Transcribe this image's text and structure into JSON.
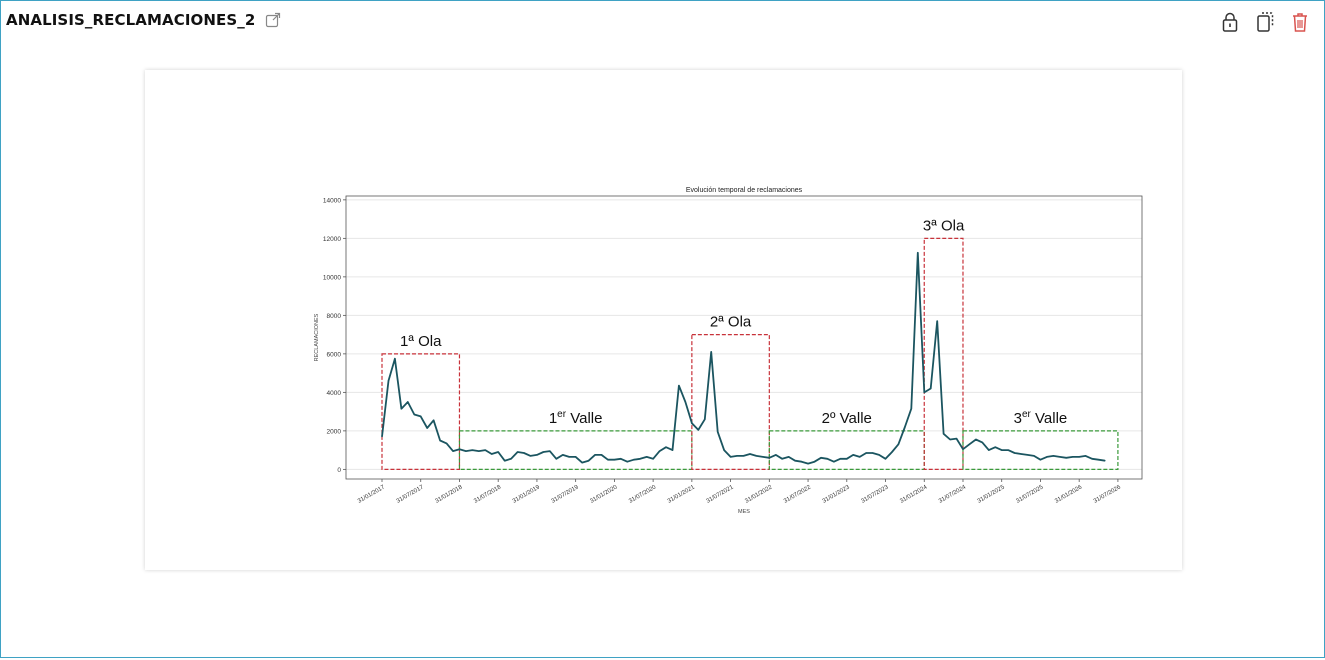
{
  "header": {
    "title": "ANALISIS_RECLAMACIONES_2"
  },
  "colors": {
    "line": "#1b5560",
    "wave_box": "#c8323a",
    "valley_box": "#3a9a3a",
    "frame_border": "#3fa2c4",
    "delete_icon": "#d9534f"
  },
  "chart_data": {
    "type": "line",
    "title": "Evolución temporal de reclamaciones",
    "xlabel": "MES",
    "ylabel": "RECLAMACIONES",
    "ylim": [
      -500,
      14200
    ],
    "y_ticks": [
      0,
      2000,
      4000,
      6000,
      8000,
      10000,
      12000,
      14000
    ],
    "grid": "horizontal",
    "x_ticks": [
      "31/01/2017",
      "31/07/2017",
      "31/01/2018",
      "31/07/2018",
      "31/01/2019",
      "31/07/2019",
      "31/01/2020",
      "31/07/2020",
      "31/01/2021",
      "31/07/2021",
      "31/01/2022",
      "31/07/2022",
      "31/01/2023",
      "31/07/2023",
      "31/01/2024",
      "31/07/2024",
      "31/01/2025",
      "31/07/2025",
      "31/01/2026",
      "31/07/2026"
    ],
    "x_start": "31/01/2017",
    "series": [
      {
        "values": [
          1700,
          4600,
          5750,
          3150,
          3500,
          2850,
          2750,
          2150,
          2550,
          1500,
          1350,
          950,
          1050,
          950,
          1000,
          950,
          1000,
          800,
          900,
          450,
          550,
          900,
          850,
          700,
          750,
          900,
          950,
          550,
          750,
          650,
          650,
          350,
          450,
          750,
          750,
          500,
          500,
          550,
          400,
          500,
          550,
          650,
          550,
          950,
          1150,
          1000,
          4350,
          3500,
          2400,
          2050,
          2600,
          6100,
          1950,
          1000,
          650,
          700,
          700,
          800,
          700,
          650,
          600,
          750,
          550,
          650,
          450,
          400,
          300,
          400,
          600,
          550,
          400,
          550,
          550,
          750,
          650,
          850,
          850,
          750,
          550,
          900,
          1300,
          2200,
          3150,
          11250,
          4000,
          4200,
          7700,
          1850,
          1550,
          1600,
          1050,
          1300,
          1550,
          1400,
          1000,
          1150,
          1000,
          1000,
          850,
          800,
          750,
          700,
          500,
          650,
          700,
          650,
          600,
          650,
          650,
          700,
          550,
          500,
          450
        ]
      }
    ],
    "annotations": [
      {
        "label": "1ª Ola",
        "kind": "wave",
        "from": "31/01/2017",
        "to": "31/01/2018",
        "ymax": 6000
      },
      {
        "label_main": "1",
        "label_sup": "er",
        "label_rest": " Valle",
        "kind": "valley",
        "from": "31/01/2018",
        "to": "31/01/2021",
        "ymax": 2000
      },
      {
        "label": "2ª Ola",
        "kind": "wave",
        "from": "31/01/2021",
        "to": "31/01/2022",
        "ymax": 7000
      },
      {
        "label": "2º Valle",
        "kind": "valley",
        "from": "31/01/2022",
        "to": "31/01/2024",
        "ymax": 2000
      },
      {
        "label": "3ª Ola",
        "kind": "wave",
        "from": "31/01/2024",
        "to": "31/07/2024",
        "ymax": 12000
      },
      {
        "label_main": "3",
        "label_sup": "er",
        "label_rest": " Valle",
        "kind": "valley",
        "from": "31/07/2024",
        "to": "31/07/2026",
        "ymax": 2000
      }
    ]
  }
}
